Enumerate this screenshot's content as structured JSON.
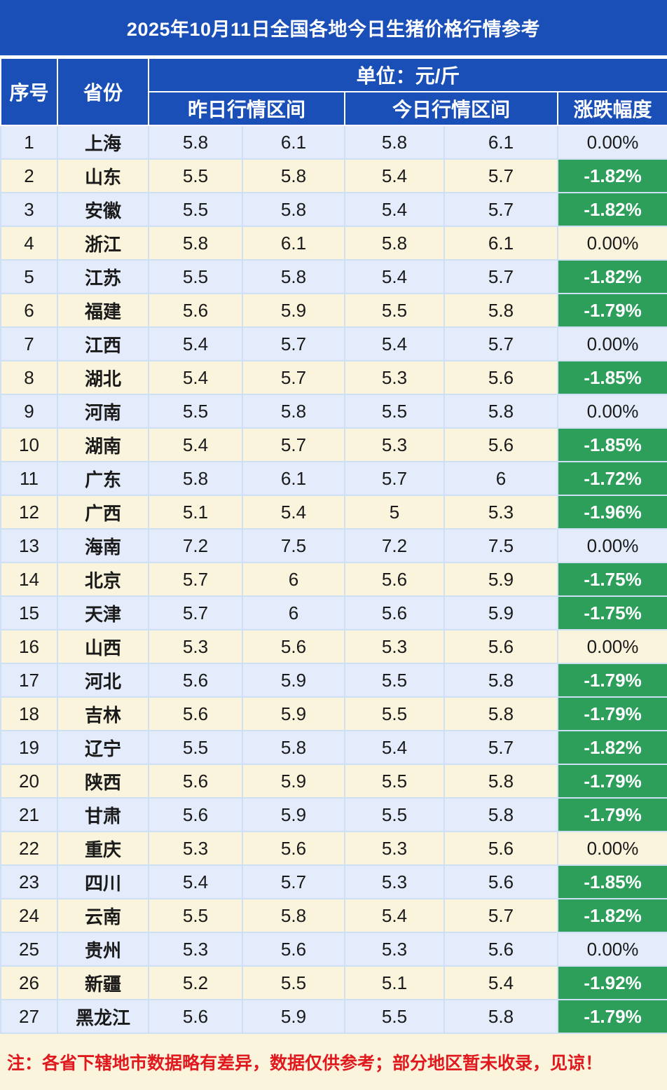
{
  "title": "2025年10月11日全国各地今日生猪价格行情参考",
  "header": {
    "seq": "序号",
    "province": "省份",
    "unit": "单位：元/斤",
    "yesterday": "昨日行情区间",
    "today": "今日行情区间",
    "change": "涨跌幅度"
  },
  "rows": [
    {
      "seq": "1",
      "province": "上海",
      "y_low": "5.8",
      "y_high": "6.1",
      "t_low": "5.8",
      "t_high": "6.1",
      "change": "0.00%"
    },
    {
      "seq": "2",
      "province": "山东",
      "y_low": "5.5",
      "y_high": "5.8",
      "t_low": "5.4",
      "t_high": "5.7",
      "change": "-1.82%"
    },
    {
      "seq": "3",
      "province": "安徽",
      "y_low": "5.5",
      "y_high": "5.8",
      "t_low": "5.4",
      "t_high": "5.7",
      "change": "-1.82%"
    },
    {
      "seq": "4",
      "province": "浙江",
      "y_low": "5.8",
      "y_high": "6.1",
      "t_low": "5.8",
      "t_high": "6.1",
      "change": "0.00%"
    },
    {
      "seq": "5",
      "province": "江苏",
      "y_low": "5.5",
      "y_high": "5.8",
      "t_low": "5.4",
      "t_high": "5.7",
      "change": "-1.82%"
    },
    {
      "seq": "6",
      "province": "福建",
      "y_low": "5.6",
      "y_high": "5.9",
      "t_low": "5.5",
      "t_high": "5.8",
      "change": "-1.79%"
    },
    {
      "seq": "7",
      "province": "江西",
      "y_low": "5.4",
      "y_high": "5.7",
      "t_low": "5.4",
      "t_high": "5.7",
      "change": "0.00%"
    },
    {
      "seq": "8",
      "province": "湖北",
      "y_low": "5.4",
      "y_high": "5.7",
      "t_low": "5.3",
      "t_high": "5.6",
      "change": "-1.85%"
    },
    {
      "seq": "9",
      "province": "河南",
      "y_low": "5.5",
      "y_high": "5.8",
      "t_low": "5.5",
      "t_high": "5.8",
      "change": "0.00%"
    },
    {
      "seq": "10",
      "province": "湖南",
      "y_low": "5.4",
      "y_high": "5.7",
      "t_low": "5.3",
      "t_high": "5.6",
      "change": "-1.85%"
    },
    {
      "seq": "11",
      "province": "广东",
      "y_low": "5.8",
      "y_high": "6.1",
      "t_low": "5.7",
      "t_high": "6",
      "change": "-1.72%"
    },
    {
      "seq": "12",
      "province": "广西",
      "y_low": "5.1",
      "y_high": "5.4",
      "t_low": "5",
      "t_high": "5.3",
      "change": "-1.96%"
    },
    {
      "seq": "13",
      "province": "海南",
      "y_low": "7.2",
      "y_high": "7.5",
      "t_low": "7.2",
      "t_high": "7.5",
      "change": "0.00%"
    },
    {
      "seq": "14",
      "province": "北京",
      "y_low": "5.7",
      "y_high": "6",
      "t_low": "5.6",
      "t_high": "5.9",
      "change": "-1.75%"
    },
    {
      "seq": "15",
      "province": "天津",
      "y_low": "5.7",
      "y_high": "6",
      "t_low": "5.6",
      "t_high": "5.9",
      "change": "-1.75%"
    },
    {
      "seq": "16",
      "province": "山西",
      "y_low": "5.3",
      "y_high": "5.6",
      "t_low": "5.3",
      "t_high": "5.6",
      "change": "0.00%"
    },
    {
      "seq": "17",
      "province": "河北",
      "y_low": "5.6",
      "y_high": "5.9",
      "t_low": "5.5",
      "t_high": "5.8",
      "change": "-1.79%"
    },
    {
      "seq": "18",
      "province": "吉林",
      "y_low": "5.6",
      "y_high": "5.9",
      "t_low": "5.5",
      "t_high": "5.8",
      "change": "-1.79%"
    },
    {
      "seq": "19",
      "province": "辽宁",
      "y_low": "5.5",
      "y_high": "5.8",
      "t_low": "5.4",
      "t_high": "5.7",
      "change": "-1.82%"
    },
    {
      "seq": "20",
      "province": "陕西",
      "y_low": "5.6",
      "y_high": "5.9",
      "t_low": "5.5",
      "t_high": "5.8",
      "change": "-1.79%"
    },
    {
      "seq": "21",
      "province": "甘肃",
      "y_low": "5.6",
      "y_high": "5.9",
      "t_low": "5.5",
      "t_high": "5.8",
      "change": "-1.79%"
    },
    {
      "seq": "22",
      "province": "重庆",
      "y_low": "5.3",
      "y_high": "5.6",
      "t_low": "5.3",
      "t_high": "5.6",
      "change": "0.00%"
    },
    {
      "seq": "23",
      "province": "四川",
      "y_low": "5.4",
      "y_high": "5.7",
      "t_low": "5.3",
      "t_high": "5.6",
      "change": "-1.85%"
    },
    {
      "seq": "24",
      "province": "云南",
      "y_low": "5.5",
      "y_high": "5.8",
      "t_low": "5.4",
      "t_high": "5.7",
      "change": "-1.82%"
    },
    {
      "seq": "25",
      "province": "贵州",
      "y_low": "5.3",
      "y_high": "5.6",
      "t_low": "5.3",
      "t_high": "5.6",
      "change": "0.00%"
    },
    {
      "seq": "26",
      "province": "新疆",
      "y_low": "5.2",
      "y_high": "5.5",
      "t_low": "5.1",
      "t_high": "5.4",
      "change": "-1.92%"
    },
    {
      "seq": "27",
      "province": "黑龙江",
      "y_low": "5.6",
      "y_high": "5.9",
      "t_low": "5.5",
      "t_high": "5.8",
      "change": "-1.79%"
    }
  ],
  "note": "注：各省下辖地市数据略有差异，数据仅供参考；部分地区暂未收录，见谅！",
  "colors": {
    "header_bg": "#1a4fb8",
    "row_odd": "#e4ecfb",
    "row_even": "#fbf4dd",
    "down_bg": "#2e9e5b",
    "note_text": "#e0191f"
  }
}
